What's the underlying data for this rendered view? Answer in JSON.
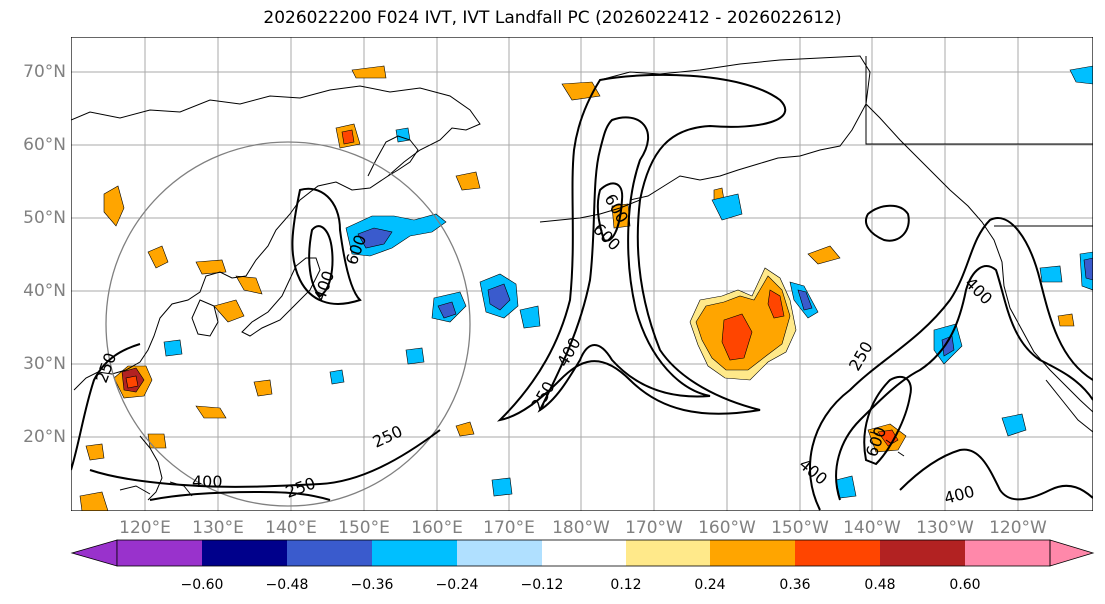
{
  "title": "2026022200 F024 IVT, IVT Landfall PC (2026022412 - 2026022612)",
  "lat_labels": [
    "70°N",
    "60°N",
    "50°N",
    "40°N",
    "30°N",
    "20°N"
  ],
  "lon_labels": [
    "120°E",
    "130°E",
    "140°E",
    "150°E",
    "160°E",
    "170°E",
    "180°W",
    "170°W",
    "160°W",
    "150°W",
    "140°W",
    "130°W",
    "120°W"
  ],
  "contour_labels": [
    "250",
    "250",
    "250",
    "250",
    "250",
    "400",
    "400",
    "400",
    "400",
    "400",
    "400",
    "600",
    "600",
    "600",
    "600"
  ],
  "colorbar": {
    "tick_labels": [
      "−0.60",
      "−0.48",
      "−0.36",
      "−0.24",
      "−0.12",
      "0.12",
      "0.24",
      "0.36",
      "0.48",
      "0.60"
    ],
    "colors": [
      "#9932cc",
      "#00008b",
      "#3a5bcd",
      "#00bfff",
      "#b0e0ff",
      "#ffffff",
      "#ffe98a",
      "#ffa500",
      "#ff4500",
      "#b22222",
      "#ff88aa"
    ]
  },
  "fill_colors": {
    "light_yellow": "#ffe98a",
    "orange": "#ffa500",
    "red_orange": "#ff4500",
    "dark_red": "#b22222",
    "light_blue": "#b0e0ff",
    "deep_sky": "#00bfff",
    "royal_blue": "#3a5bcd",
    "grid": "#aaaaaa",
    "circle": "#808080"
  }
}
